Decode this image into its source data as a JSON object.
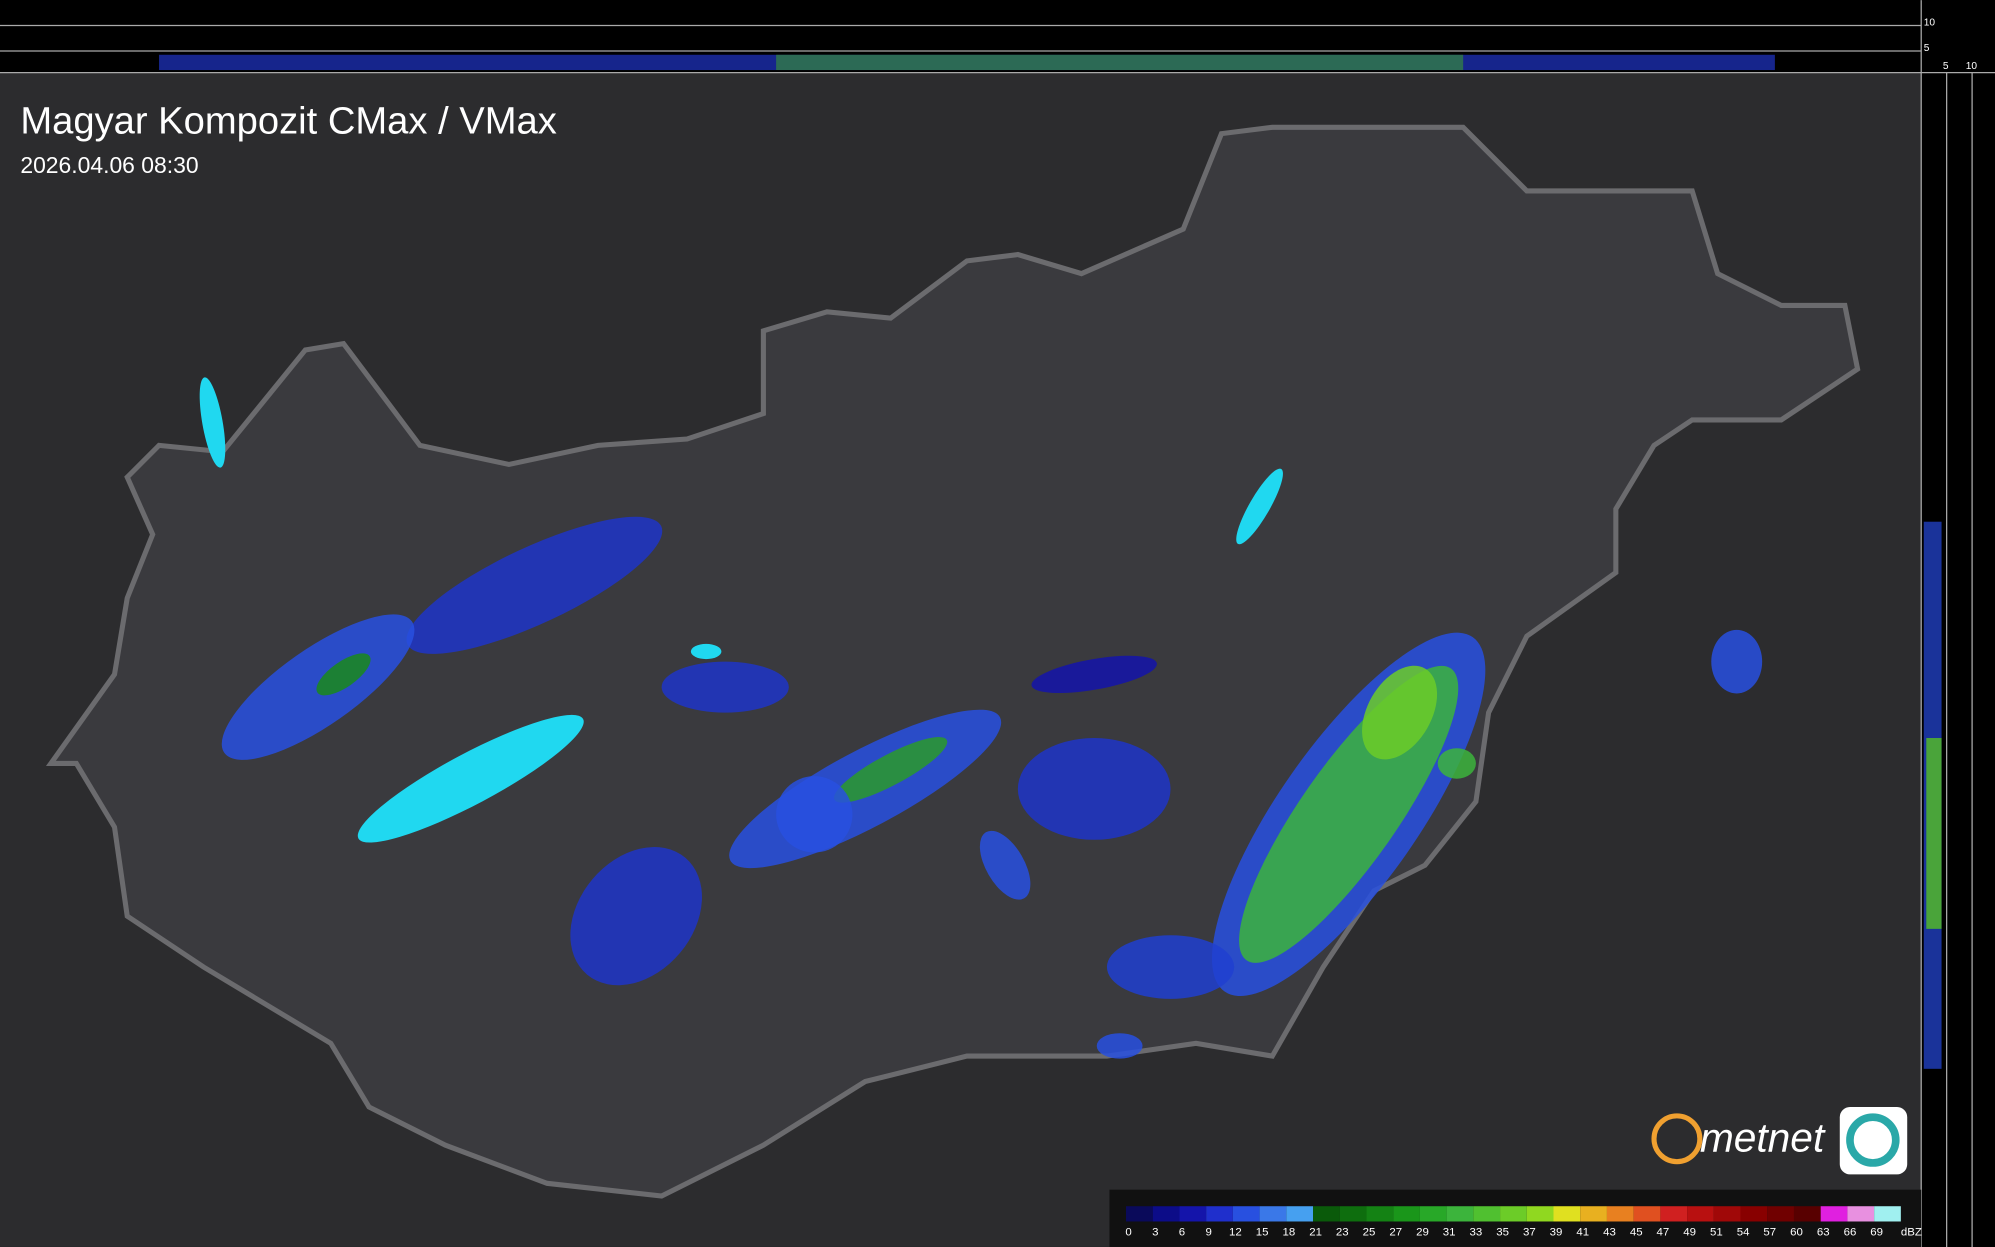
{
  "header": {
    "title": "Magyar Kompozit CMax / VMax",
    "timestamp": "2026.04.06 08:30"
  },
  "top_profile": {
    "labels": [
      "10",
      "5"
    ]
  },
  "side_profile": {
    "labels": [
      "5",
      "10"
    ]
  },
  "logo": {
    "text": "metnet"
  },
  "legend": {
    "unit": "dBZ",
    "stops": [
      {
        "value": 0,
        "color": "#0a0a5a"
      },
      {
        "value": 3,
        "color": "#0c0c88"
      },
      {
        "value": 6,
        "color": "#1414aa"
      },
      {
        "value": 9,
        "color": "#1f2fcc"
      },
      {
        "value": 12,
        "color": "#2850e0"
      },
      {
        "value": 15,
        "color": "#3a78e8"
      },
      {
        "value": 18,
        "color": "#46a0f0"
      },
      {
        "value": 21,
        "color": "#0a5a0a"
      },
      {
        "value": 23,
        "color": "#0e6e0e"
      },
      {
        "value": 25,
        "color": "#148214"
      },
      {
        "value": 27,
        "color": "#1a961a"
      },
      {
        "value": 29,
        "color": "#28a828"
      },
      {
        "value": 31,
        "color": "#3cb43c"
      },
      {
        "value": 33,
        "color": "#50c030"
      },
      {
        "value": 35,
        "color": "#6ccc28"
      },
      {
        "value": 37,
        "color": "#90d820"
      },
      {
        "value": 39,
        "color": "#e0e020"
      },
      {
        "value": 41,
        "color": "#e8b020"
      },
      {
        "value": 43,
        "color": "#e88020"
      },
      {
        "value": 45,
        "color": "#e05020"
      },
      {
        "value": 47,
        "color": "#d02020"
      },
      {
        "value": 49,
        "color": "#b81010"
      },
      {
        "value": 51,
        "color": "#a00808"
      },
      {
        "value": 54,
        "color": "#880000"
      },
      {
        "value": 57,
        "color": "#700000"
      },
      {
        "value": 60,
        "color": "#580000"
      },
      {
        "value": 63,
        "color": "#e020e0"
      },
      {
        "value": 66,
        "color": "#e890e0"
      },
      {
        "value": 69,
        "color": "#a0f0f0"
      }
    ]
  }
}
